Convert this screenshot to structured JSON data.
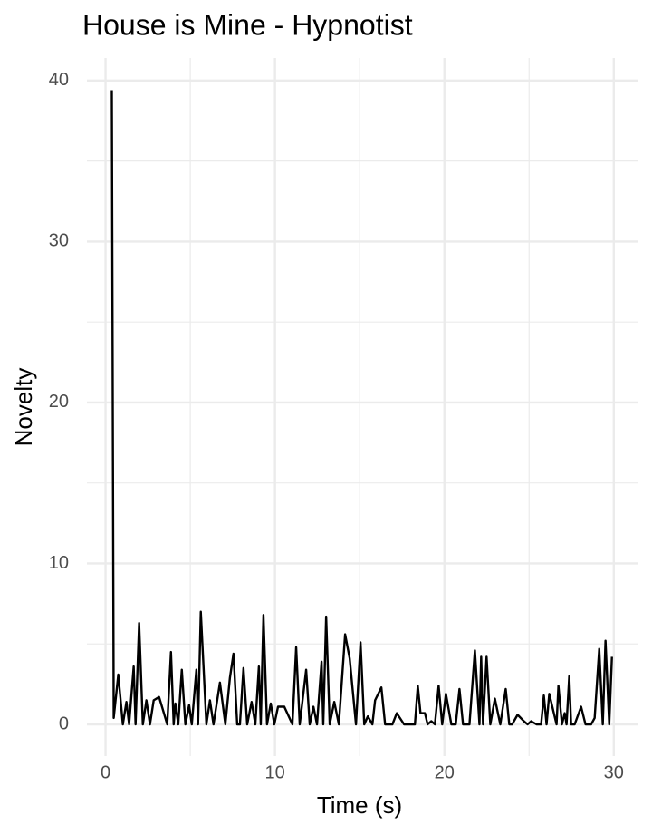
{
  "chart_data": {
    "type": "line",
    "title": "House is Mine - Hypnotist",
    "x_label": "Time (s)",
    "y_label": "Novelty",
    "series": [
      {
        "color": "#000000",
        "x": [
          0.37,
          0.48,
          0.75,
          1.02,
          1.23,
          1.39,
          1.66,
          1.77,
          1.98,
          2.2,
          2.41,
          2.62,
          2.84,
          3.16,
          3.64,
          3.86,
          4.02,
          4.12,
          4.29,
          4.5,
          4.71,
          4.93,
          5.09,
          5.36,
          5.46,
          5.62,
          5.95,
          6.16,
          6.37,
          6.75,
          7.07,
          7.34,
          7.55,
          7.77,
          7.93,
          8.14,
          8.36,
          8.62,
          8.84,
          9.05,
          9.16,
          9.32,
          9.53,
          9.75,
          9.96,
          10.18,
          10.55,
          11.03,
          11.25,
          11.46,
          11.84,
          12.05,
          12.27,
          12.48,
          12.75,
          12.85,
          13.02,
          13.23,
          13.5,
          13.77,
          14.14,
          14.41,
          14.78,
          15.05,
          15.27,
          15.48,
          15.75,
          15.91,
          16.28,
          16.5,
          16.93,
          17.19,
          17.62,
          17.84,
          18.26,
          18.43,
          18.59,
          18.85,
          19.01,
          19.23,
          19.44,
          19.66,
          19.87,
          20.09,
          20.41,
          20.67,
          20.89,
          21.1,
          21.48,
          21.8,
          22.07,
          22.17,
          22.28,
          22.49,
          22.71,
          22.98,
          23.3,
          23.62,
          23.83,
          24.0,
          24.32,
          24.69,
          24.91,
          25.12,
          25.44,
          25.71,
          25.87,
          26.03,
          26.19,
          26.62,
          26.73,
          26.94,
          27.1,
          27.21,
          27.37,
          27.48,
          27.69,
          28.07,
          28.33,
          28.66,
          28.87,
          29.14,
          29.35,
          29.51,
          29.73,
          29.89
        ],
        "values": [
          39.4,
          0.4,
          3.1,
          0,
          1.4,
          0,
          3.6,
          0,
          6.3,
          0,
          1.5,
          0,
          1.5,
          1.7,
          0,
          4.5,
          0,
          1.3,
          0,
          3.4,
          0,
          1.2,
          0,
          3.4,
          0,
          7.0,
          0,
          1.5,
          0,
          2.6,
          0,
          2.9,
          4.4,
          0,
          0,
          3.5,
          0,
          1.4,
          0,
          3.6,
          0,
          6.8,
          0,
          1.3,
          0,
          1.1,
          1.1,
          0,
          4.8,
          0,
          3.4,
          0,
          1.1,
          0,
          3.9,
          0,
          6.7,
          0,
          1.4,
          0,
          5.6,
          4.1,
          0,
          5.1,
          0,
          0.5,
          0,
          1.5,
          2.3,
          0,
          0,
          0.7,
          0,
          0,
          0,
          2.4,
          0.7,
          0.7,
          0,
          0.2,
          0,
          2.4,
          0,
          1.9,
          0,
          0,
          2.2,
          0,
          0,
          4.6,
          0,
          4.2,
          0,
          4.2,
          0,
          1.6,
          0,
          2.2,
          0,
          0,
          0.6,
          0.2,
          0,
          0.2,
          0,
          0,
          1.8,
          0,
          1.9,
          0,
          2.4,
          0,
          0.7,
          0,
          3.0,
          0,
          0,
          1.1,
          0,
          0,
          0.4,
          4.7,
          0,
          5.2,
          0,
          4.2
        ]
      }
    ],
    "xlim": [
      -1.1,
      31.4
    ],
    "xticks": [
      0,
      10,
      20,
      30
    ],
    "x_minor_ticks": [
      5,
      15,
      25
    ],
    "ylim": [
      -1.97,
      41.4
    ],
    "yticks": [
      0,
      10,
      20,
      30,
      40
    ],
    "y_minor_ticks": [
      5,
      15,
      25,
      35
    ],
    "grid": true
  }
}
